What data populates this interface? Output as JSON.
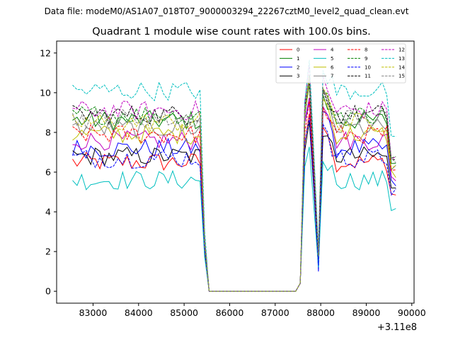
{
  "suptitle": "Data file: modeM0/AS1A07_018T07_9000003294_22267cztM0_level2_quad_clean.evt",
  "chart_data": {
    "type": "line",
    "title": "Quadrant 1 module wise count rates with 100.0s bins.",
    "xlabel": "",
    "ylabel": "",
    "x_offset_label": "+3.11e8",
    "x_offset": 311000000,
    "xlim": [
      82200,
      90050
    ],
    "ylim": [
      -0.6,
      12.6
    ],
    "xticks": [
      83000,
      84000,
      85000,
      86000,
      87000,
      88000,
      89000,
      90000
    ],
    "yticks": [
      0,
      2,
      4,
      6,
      8,
      10,
      12
    ],
    "grid": false,
    "legend_placement": "top-right",
    "segments": [
      {
        "from": 82550,
        "to": 85350,
        "step": 100
      },
      {
        "from": 85350,
        "to": 85550,
        "step": 100
      },
      {
        "from": 85550,
        "to": 87450,
        "step": 100
      },
      {
        "from": 87450,
        "to": 89650,
        "step": 100
      }
    ],
    "series": [
      {
        "name": "0",
        "color": "#ff0000",
        "dash": "solid",
        "base": 6.5,
        "burst": 9.0,
        "dip": 1.5
      },
      {
        "name": "1",
        "color": "#008000",
        "dash": "solid",
        "base": 8.6,
        "burst": 10.3,
        "dip": 1.9
      },
      {
        "name": "2",
        "color": "#0000ff",
        "dash": "solid",
        "base": 7.2,
        "burst": 9.6,
        "dip": 1.0
      },
      {
        "name": "3",
        "color": "#000000",
        "dash": "solid",
        "base": 6.8,
        "burst": 8.5,
        "dip": 1.4
      },
      {
        "name": "4",
        "color": "#bf00bf",
        "dash": "solid",
        "base": 7.6,
        "burst": 10.0,
        "dip": 1.6
      },
      {
        "name": "5",
        "color": "#00bfbf",
        "dash": "solid",
        "base": 5.6,
        "burst": 7.0,
        "dip": 1.2
      },
      {
        "name": "6",
        "color": "#bfbf00",
        "dash": "solid",
        "base": 7.9,
        "burst": 10.4,
        "dip": 1.8
      },
      {
        "name": "7",
        "color": "#808080",
        "dash": "solid",
        "base": 8.2,
        "burst": 10.6,
        "dip": 1.7
      },
      {
        "name": "8",
        "color": "#ff0000",
        "dash": "dashed",
        "base": 7.9,
        "burst": 9.8,
        "dip": 1.9
      },
      {
        "name": "9",
        "color": "#008000",
        "dash": "dashed",
        "base": 8.9,
        "burst": 10.8,
        "dip": 2.0
      },
      {
        "name": "10",
        "color": "#0000ff",
        "dash": "dashed",
        "base": 6.7,
        "burst": 8.8,
        "dip": 1.3
      },
      {
        "name": "11",
        "color": "#000000",
        "dash": "dashed",
        "base": 8.9,
        "burst": 10.5,
        "dip": 1.9
      },
      {
        "name": "12",
        "color": "#bf00bf",
        "dash": "dashed",
        "base": 9.1,
        "burst": 11.2,
        "dip": 2.0
      },
      {
        "name": "13",
        "color": "#00bfbf",
        "dash": "dashed",
        "base": 10.1,
        "burst": 11.6,
        "dip": 2.1
      },
      {
        "name": "14",
        "color": "#bfbf00",
        "dash": "dashed",
        "base": 8.5,
        "burst": 10.9,
        "dip": 1.8
      },
      {
        "name": "15",
        "color": "#808080",
        "dash": "dashed",
        "base": 8.7,
        "burst": 10.7,
        "dip": 1.9
      }
    ]
  }
}
